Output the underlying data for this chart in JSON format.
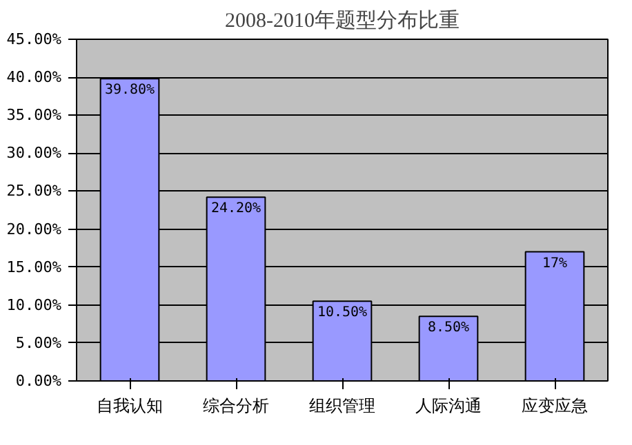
{
  "chart_data": {
    "type": "bar",
    "title": "2008-2010年题型分布比重",
    "categories": [
      "自我认知",
      "综合分析",
      "组织管理",
      "人际沟通",
      "应变应急"
    ],
    "values": [
      39.8,
      24.2,
      10.5,
      8.5,
      17
    ],
    "value_labels": [
      "39.80%",
      "24.20%",
      "10.50%",
      "8.50%",
      "17%"
    ],
    "color": "#9999ff",
    "ylim": [
      0,
      45
    ],
    "yticks": [
      {
        "value": 0,
        "label": "0.00%"
      },
      {
        "value": 5,
        "label": "5.00%"
      },
      {
        "value": 10,
        "label": "10.00%"
      },
      {
        "value": 15,
        "label": "15.00%"
      },
      {
        "value": 20,
        "label": "20.00%"
      },
      {
        "value": 25,
        "label": "25.00%"
      },
      {
        "value": 30,
        "label": "30.00%"
      },
      {
        "value": 35,
        "label": "35.00%"
      },
      {
        "value": 40,
        "label": "40.00%"
      },
      {
        "value": 45,
        "label": "45.00%"
      }
    ],
    "grid": "y"
  }
}
